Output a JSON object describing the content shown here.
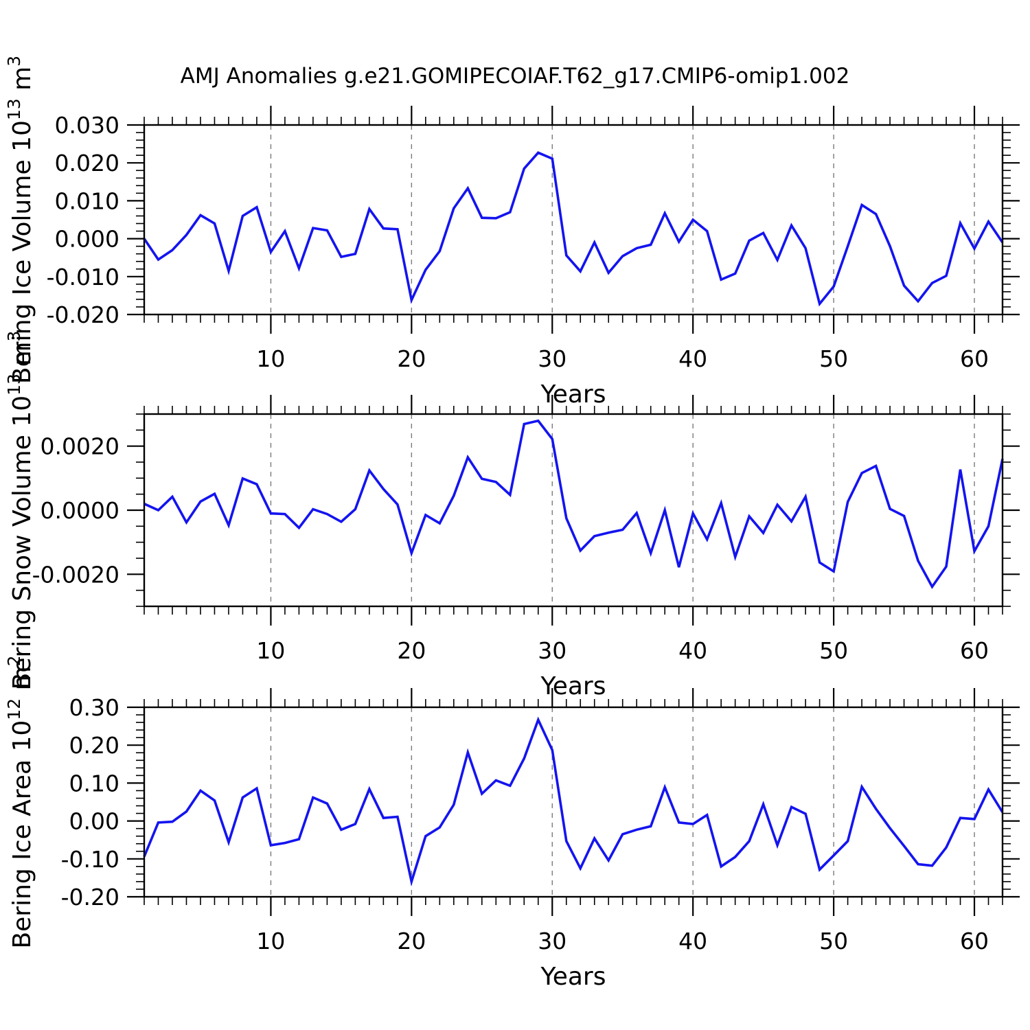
{
  "title": "AMJ Anomalies g.e21.GOMIPECOIAF.T62_g17.CMIP6-omip1.002",
  "colors": {
    "line": "#1414F0",
    "grid": "#7a7a7a",
    "axis": "#000000",
    "background": "#ffffff"
  },
  "chart_data": [
    {
      "type": "line",
      "panel": "ice-volume",
      "xlabel": "Years",
      "ylabel_plain": "Bering Ice Volume 10^13 m^3",
      "ylabel_segments": [
        {
          "t": "Bering Ice Volume 10"
        },
        {
          "t": "13",
          "sup": true
        },
        {
          "t": " m"
        },
        {
          "t": "3",
          "sup": true
        }
      ],
      "x_start": 1,
      "xlim": [
        1,
        62
      ],
      "ylim": [
        -0.02,
        0.03
      ],
      "xticks_major": [
        10,
        20,
        30,
        40,
        50,
        60
      ],
      "xtick_labels": [
        "10",
        "20",
        "30",
        "40",
        "50",
        "60"
      ],
      "xtick_minor_step": 1,
      "ytick_major_values": [
        0.03,
        0.02,
        0.01,
        0.0,
        -0.01,
        -0.02
      ],
      "ytick_labels": [
        "0.030",
        "0.020",
        "0.010",
        "0.000",
        "-0.010",
        "-0.020"
      ],
      "ytick_minor_step": 0.002,
      "grid_on_x_majors": true,
      "values": [
        0.0,
        -0.0055,
        -0.003,
        0.001,
        0.0062,
        0.004,
        -0.0085,
        0.006,
        0.0083,
        -0.0035,
        0.002,
        -0.0078,
        0.0028,
        0.0022,
        -0.0048,
        -0.004,
        0.0078,
        0.0027,
        0.0025,
        -0.0162,
        -0.0082,
        -0.0033,
        0.008,
        0.0133,
        0.0055,
        0.0054,
        0.007,
        0.0185,
        0.0227,
        0.0211,
        -0.0044,
        -0.0086,
        -0.001,
        -0.009,
        -0.0046,
        -0.0025,
        -0.0016,
        0.0067,
        -0.0008,
        0.005,
        0.002,
        -0.0108,
        -0.0092,
        -0.0005,
        0.0015,
        -0.0056,
        0.0035,
        -0.0025,
        -0.0172,
        -0.0126,
        -0.002,
        0.0089,
        0.0065,
        -0.002,
        -0.0124,
        -0.0165,
        -0.0117,
        -0.0098,
        0.0041,
        -0.0026,
        0.0045,
        -0.001
      ]
    },
    {
      "type": "line",
      "panel": "snow-volume",
      "xlabel": "Years",
      "ylabel_plain": "Bering Snow Volume 10^13 m^3",
      "ylabel_segments": [
        {
          "t": "Bering Snow Volume 10"
        },
        {
          "t": "13",
          "sup": true
        },
        {
          "t": " m"
        },
        {
          "t": "3",
          "sup": true
        }
      ],
      "x_start": 1,
      "xlim": [
        1,
        62
      ],
      "ylim": [
        -0.003,
        0.003
      ],
      "xticks_major": [
        10,
        20,
        30,
        40,
        50,
        60
      ],
      "xtick_labels": [
        "10",
        "20",
        "30",
        "40",
        "50",
        "60"
      ],
      "xtick_minor_step": 1,
      "ytick_major_values": [
        0.002,
        0.0,
        -0.002
      ],
      "ytick_labels": [
        "0.0020",
        "0.0000",
        "-0.0020"
      ],
      "ytick_minor_step": 0.0005,
      "grid_on_x_majors": true,
      "values": [
        0.0002,
        0.0,
        0.00042,
        -0.00038,
        0.00027,
        0.00051,
        -0.00047,
        0.00099,
        0.00081,
        -0.0001,
        -0.00012,
        -0.00055,
        3e-05,
        -0.00012,
        -0.00036,
        3e-05,
        0.00124,
        0.00066,
        0.00018,
        -0.00134,
        -0.00015,
        -0.00041,
        0.00045,
        0.00165,
        0.00098,
        0.00088,
        0.00048,
        0.00269,
        0.00279,
        0.00222,
        -0.00025,
        -0.00126,
        -0.00081,
        -0.0007,
        -0.00061,
        -9e-05,
        -0.00134,
        0.0,
        -0.00178,
        -0.0001,
        -0.00091,
        0.00022,
        -0.00146,
        -0.00019,
        -0.00071,
        0.00017,
        -0.00035,
        0.00042,
        -0.00163,
        -0.00191,
        0.00026,
        0.00116,
        0.00138,
        4e-05,
        -0.00018,
        -0.00158,
        -0.00239,
        -0.00176,
        0.00127,
        -0.00128,
        -0.0005,
        0.0016
      ]
    },
    {
      "type": "line",
      "panel": "ice-area",
      "xlabel": "Years",
      "ylabel_plain": "Bering Ice Area 10^12 m^2",
      "ylabel_segments": [
        {
          "t": "Bering Ice Area 10"
        },
        {
          "t": "12",
          "sup": true
        },
        {
          "t": " m"
        },
        {
          "t": "2",
          "sup": true
        }
      ],
      "x_start": 1,
      "xlim": [
        1,
        62
      ],
      "ylim": [
        -0.2,
        0.3
      ],
      "xticks_major": [
        10,
        20,
        30,
        40,
        50,
        60
      ],
      "xtick_labels": [
        "10",
        "20",
        "30",
        "40",
        "50",
        "60"
      ],
      "xtick_minor_step": 1,
      "ytick_major_values": [
        0.3,
        0.2,
        0.1,
        0.0,
        -0.1,
        -0.2
      ],
      "ytick_labels": [
        "0.30",
        "0.20",
        "0.10",
        "0.00",
        "-0.10",
        "-0.20"
      ],
      "ytick_minor_step": 0.02,
      "grid_on_x_majors": true,
      "values": [
        -0.094,
        -0.004,
        -0.002,
        0.025,
        0.08,
        0.054,
        -0.056,
        0.062,
        0.086,
        -0.064,
        -0.058,
        -0.048,
        0.062,
        0.046,
        -0.023,
        -0.008,
        0.084,
        0.008,
        0.011,
        -0.16,
        -0.04,
        -0.017,
        0.043,
        0.181,
        0.072,
        0.107,
        0.093,
        0.165,
        0.267,
        0.187,
        -0.053,
        -0.125,
        -0.046,
        -0.104,
        -0.035,
        -0.023,
        -0.014,
        0.089,
        -0.004,
        -0.008,
        0.016,
        -0.12,
        -0.095,
        -0.053,
        0.044,
        -0.064,
        0.037,
        0.019,
        -0.128,
        -0.091,
        -0.053,
        0.09,
        0.032,
        -0.019,
        -0.066,
        -0.114,
        -0.118,
        -0.07,
        0.008,
        0.005,
        0.083,
        0.023
      ]
    }
  ]
}
